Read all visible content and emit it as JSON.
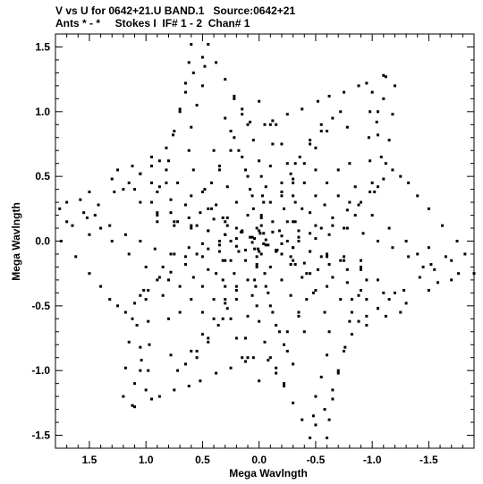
{
  "header": {
    "line1": "V vs U for 0642+21.U BAND.1   Source:0642+21",
    "line2": "Ants * - *     Stokes I  IF# 1 - 2  Chan# 1"
  },
  "chart_data": {
    "type": "scatter",
    "xlabel": "Mega Wavlngth",
    "ylabel": "Mega Wavlngth",
    "xlim": [
      1.8,
      -1.9
    ],
    "ylim": [
      -1.6,
      1.6
    ],
    "x_ticks": [
      1.5,
      1.0,
      0.5,
      0.0,
      -0.5,
      -1.0,
      -1.5
    ],
    "x_tick_labels": [
      "1.5",
      "1.0",
      "0.5",
      "0.0",
      "-0.5",
      "-1.0",
      "-1.5"
    ],
    "y_ticks": [
      1.5,
      1.0,
      0.5,
      0.0,
      -0.5,
      -1.0,
      -1.5
    ],
    "y_tick_labels": [
      "1.5",
      "1.0",
      "0.5",
      "0.0",
      "-0.5",
      "-1.0",
      "-1.5"
    ],
    "grid": false,
    "point_color": "#000000",
    "arms": [
      {
        "name": "a",
        "points": [
          [
            1.7625,
            0.25
          ],
          [
            1.65,
            0.12
          ],
          [
            1.5,
            0.05
          ],
          [
            1.3,
            0.0
          ],
          [
            1.15,
            -0.1
          ],
          [
            1.0,
            -0.2
          ],
          [
            0.88,
            -0.28
          ],
          [
            0.8,
            -0.3
          ],
          [
            0.85,
            -0.2
          ],
          [
            0.75,
            -0.1
          ],
          [
            0.62,
            -0.05
          ],
          [
            0.5,
            -0.02
          ],
          [
            0.35,
            0.0
          ],
          [
            0.2,
            0.02
          ],
          [
            0.08,
            0.03
          ]
        ]
      },
      {
        "name": "b",
        "points": [
          [
            1.58,
            0.32
          ],
          [
            1.45,
            0.2
          ],
          [
            1.32,
            0.12
          ],
          [
            1.18,
            0.05
          ],
          [
            1.05,
            0.0
          ],
          [
            0.92,
            -0.06
          ],
          [
            0.78,
            -0.1
          ],
          [
            0.65,
            -0.12
          ],
          [
            0.55,
            -0.1
          ],
          [
            0.45,
            -0.06
          ],
          [
            0.35,
            -0.03
          ],
          [
            0.25,
            0.0
          ]
        ]
      },
      {
        "name": "c",
        "points": [
          [
            1.52,
            0.18
          ],
          [
            1.4,
            0.1
          ]
        ]
      },
      {
        "name": "d",
        "points": [
          [
            1.04,
            -0.92
          ],
          [
            1.1,
            -1.1
          ],
          [
            1.12,
            -1.27
          ],
          [
            0.95,
            -1.22
          ],
          [
            0.98,
            -1.0
          ],
          [
            0.97,
            -0.8
          ],
          [
            0.98,
            -0.62
          ],
          [
            1.0,
            -0.45
          ],
          [
            1.02,
            -0.38
          ],
          [
            0.85,
            -0.42
          ],
          [
            0.8,
            -0.6
          ],
          [
            0.78,
            -0.88
          ],
          [
            0.72,
            -1.0
          ],
          [
            0.65,
            -0.95
          ],
          [
            0.55,
            -0.85
          ],
          [
            0.45,
            -0.75
          ],
          [
            0.32,
            -0.6
          ],
          [
            0.2,
            -0.45
          ],
          [
            0.1,
            -0.3
          ],
          [
            0.02,
            -0.12
          ]
        ]
      },
      {
        "name": "e",
        "points": [
          [
            0.6,
            1.52
          ],
          [
            0.62,
            1.38
          ],
          [
            0.65,
            1.22
          ],
          [
            0.7,
            1.02
          ],
          [
            0.76,
            0.82
          ],
          [
            0.8,
            0.62
          ],
          [
            0.82,
            0.45
          ],
          [
            0.88,
            0.42
          ],
          [
            0.95,
            0.45
          ],
          [
            1.05,
            0.52
          ],
          [
            0.9,
            0.38
          ],
          [
            0.78,
            0.32
          ],
          [
            0.65,
            0.28
          ],
          [
            0.52,
            0.22
          ],
          [
            0.4,
            0.17
          ],
          [
            0.28,
            0.12
          ],
          [
            0.16,
            0.07
          ],
          [
            0.06,
            0.03
          ]
        ]
      },
      {
        "name": "f",
        "points": [
          [
            0.48,
            1.35
          ],
          [
            0.5,
            1.2
          ],
          [
            0.55,
            1.05
          ],
          [
            0.6,
            0.88
          ],
          [
            0.62,
            0.7
          ],
          [
            0.58,
            0.55
          ],
          [
            0.48,
            0.4
          ],
          [
            0.38,
            0.28
          ],
          [
            0.28,
            0.18
          ],
          [
            0.15,
            0.08
          ]
        ]
      },
      {
        "name": "g",
        "points": [
          [
            0.22,
            1.1
          ],
          [
            0.15,
            0.98
          ],
          [
            0.08,
            0.92
          ],
          [
            -0.05,
            0.9
          ],
          [
            -0.12,
            0.93
          ],
          [
            -0.25,
            0.98
          ],
          [
            -0.38,
            1.02
          ],
          [
            -0.52,
            1.08
          ],
          [
            -0.62,
            1.12
          ],
          [
            -0.75,
            1.15
          ],
          [
            -0.88,
            1.2
          ],
          [
            -1.0,
            1.15
          ],
          [
            -1.05,
            1.0
          ],
          [
            -1.05,
            0.82
          ],
          [
            -1.08,
            0.65
          ],
          [
            -1.1,
            0.48
          ],
          [
            -1.05,
            0.42
          ],
          [
            -0.98,
            0.38
          ],
          [
            -0.9,
            0.3
          ],
          [
            -0.78,
            0.24
          ],
          [
            -0.65,
            0.18
          ],
          [
            -0.5,
            0.12
          ],
          [
            -0.35,
            0.08
          ],
          [
            -0.2,
            0.04
          ],
          [
            -0.06,
            0.01
          ]
        ]
      },
      {
        "name": "h",
        "points": [
          [
            0.0,
            1.08
          ],
          [
            -0.1,
            0.9
          ],
          [
            -0.12,
            0.75
          ],
          [
            -0.1,
            0.58
          ],
          [
            -0.06,
            0.42
          ],
          [
            -0.04,
            0.3
          ],
          [
            -0.02,
            0.18
          ],
          [
            -0.01,
            0.06
          ]
        ]
      },
      {
        "name": "i",
        "points": [
          [
            -1.1,
            1.28
          ],
          [
            -1.2,
            1.2
          ],
          [
            -1.18,
            0.98
          ],
          [
            -1.15,
            0.78
          ],
          [
            -1.12,
            0.6
          ],
          [
            -1.18,
            0.55
          ],
          [
            -1.25,
            0.5
          ],
          [
            -1.32,
            0.45
          ],
          [
            -1.4,
            0.35
          ],
          [
            -1.5,
            0.25
          ],
          [
            -1.62,
            0.12
          ],
          [
            -1.75,
            0.0
          ],
          [
            -1.82,
            -0.1
          ],
          [
            -1.7,
            -0.15
          ],
          [
            -1.55,
            -0.22
          ],
          [
            -1.42,
            -0.28
          ],
          [
            -1.28,
            -0.38
          ],
          [
            -1.15,
            -0.45
          ],
          [
            -1.05,
            -0.52
          ],
          [
            -0.95,
            -0.58
          ],
          [
            -0.88,
            -0.62
          ],
          [
            -0.82,
            -0.55
          ],
          [
            -0.72,
            -0.45
          ],
          [
            -0.6,
            -0.35
          ],
          [
            -0.45,
            -0.25
          ],
          [
            -0.3,
            -0.15
          ],
          [
            -0.15,
            -0.07
          ],
          [
            -0.04,
            -0.02
          ]
        ]
      },
      {
        "name": "j",
        "points": [
          [
            -1.9,
            -0.25
          ],
          [
            -1.7,
            -0.3
          ],
          [
            -1.5,
            -0.38
          ],
          [
            -1.3,
            -0.48
          ],
          [
            -1.12,
            -0.58
          ],
          [
            -0.95,
            -0.65
          ],
          [
            -0.82,
            -0.72
          ],
          [
            -0.75,
            -0.85
          ],
          [
            -0.7,
            -1.0
          ],
          [
            -0.65,
            -1.15
          ],
          [
            -0.58,
            -1.3
          ],
          [
            -0.5,
            -1.42
          ],
          [
            -0.45,
            -1.52
          ],
          [
            -0.38,
            -1.38
          ],
          [
            -0.3,
            -1.25
          ],
          [
            -0.22,
            -1.12
          ],
          [
            -0.15,
            -1.02
          ],
          [
            -0.1,
            -0.9
          ],
          [
            -0.05,
            -0.78
          ],
          [
            0.0,
            -0.62
          ],
          [
            0.02,
            -0.5
          ],
          [
            0.03,
            -0.35
          ],
          [
            0.02,
            -0.2
          ],
          [
            0.0,
            -0.08
          ]
        ]
      },
      {
        "name": "k",
        "points": [
          [
            0.15,
            -0.9
          ],
          [
            0.2,
            -0.75
          ],
          [
            0.25,
            -0.6
          ],
          [
            0.3,
            -0.45
          ],
          [
            0.32,
            -0.3
          ],
          [
            0.3,
            -0.15
          ]
        ]
      },
      {
        "name": "l",
        "points": [
          [
            -0.25,
            -0.7
          ],
          [
            -0.35,
            -0.58
          ],
          [
            -0.42,
            -0.45
          ],
          [
            -0.5,
            -0.38
          ],
          [
            -0.42,
            -0.25
          ],
          [
            -0.32,
            -0.18
          ],
          [
            -0.2,
            -0.1
          ]
        ]
      },
      {
        "name": "m",
        "points": [
          [
            0.4,
            0.7
          ],
          [
            0.35,
            0.55
          ],
          [
            0.28,
            0.42
          ],
          [
            0.2,
            0.3
          ],
          [
            0.1,
            0.2
          ],
          [
            0.02,
            0.1
          ]
        ]
      },
      {
        "name": "n",
        "points": [
          [
            -0.5,
            0.55
          ],
          [
            -0.4,
            0.45
          ],
          [
            -0.3,
            0.35
          ],
          [
            -0.22,
            0.25
          ],
          [
            -0.12,
            0.15
          ],
          [
            -0.04,
            0.06
          ]
        ]
      },
      {
        "name": "o",
        "points": [
          [
            0.7,
            -0.55
          ],
          [
            0.6,
            -0.45
          ],
          [
            0.5,
            -0.35
          ],
          [
            0.38,
            -0.25
          ],
          [
            0.25,
            -0.15
          ],
          [
            0.12,
            -0.07
          ]
        ]
      },
      {
        "name": "p",
        "points": [
          [
            -0.7,
            0.35
          ],
          [
            -0.58,
            0.28
          ],
          [
            -0.45,
            0.22
          ],
          [
            -0.32,
            0.15
          ],
          [
            -0.18,
            0.08
          ]
        ]
      },
      {
        "name": "q",
        "points": [
          [
            0.9,
            0.15
          ],
          [
            0.75,
            0.12
          ],
          [
            0.6,
            0.1
          ],
          [
            0.45,
            0.08
          ],
          [
            0.3,
            0.05
          ]
        ]
      },
      {
        "name": "r",
        "points": [
          [
            -0.9,
            -0.2
          ],
          [
            -0.75,
            -0.15
          ],
          [
            -0.6,
            -0.12
          ],
          [
            -0.45,
            -0.08
          ],
          [
            -0.3,
            -0.05
          ]
        ]
      },
      {
        "name": "s",
        "points": [
          [
            0.25,
            0.85
          ],
          [
            0.18,
            0.7
          ],
          [
            0.12,
            0.55
          ],
          [
            0.08,
            0.4
          ],
          [
            0.05,
            0.25
          ]
        ]
      },
      {
        "name": "t",
        "points": [
          [
            -0.3,
            -0.95
          ],
          [
            -0.22,
            -0.8
          ],
          [
            -0.15,
            -0.65
          ],
          [
            -0.1,
            -0.5
          ],
          [
            -0.06,
            -0.35
          ]
        ]
      },
      {
        "name": "u",
        "points": [
          [
            0.55,
            -0.9
          ],
          [
            0.45,
            -0.78
          ],
          [
            0.36,
            -0.65
          ],
          [
            0.28,
            -0.52
          ],
          [
            0.2,
            -0.38
          ]
        ]
      },
      {
        "name": "v",
        "points": [
          [
            -0.6,
            0.85
          ],
          [
            -0.5,
            0.72
          ],
          [
            -0.4,
            0.6
          ],
          [
            -0.3,
            0.48
          ],
          [
            -0.2,
            0.35
          ]
        ]
      },
      {
        "name": "w",
        "points": [
          [
            1.2,
            0.4
          ],
          [
            1.05,
            0.3
          ],
          [
            0.9,
            0.22
          ],
          [
            0.72,
            0.15
          ],
          [
            0.55,
            0.12
          ]
        ]
      },
      {
        "name": "x",
        "points": [
          [
            -1.25,
            -0.55
          ],
          [
            -1.1,
            -0.4
          ],
          [
            -0.95,
            -0.3
          ],
          [
            -0.78,
            -0.22
          ],
          [
            -0.62,
            -0.18
          ]
        ]
      }
    ]
  }
}
